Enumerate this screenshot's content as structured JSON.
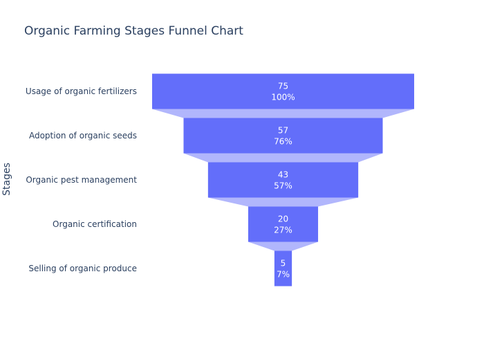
{
  "chart_data": {
    "type": "funnel",
    "title": "Organic Farming Stages Funnel Chart",
    "ylabel": "Stages",
    "xlabel": "",
    "categories": [
      "Usage of organic fertilizers",
      "Adoption of organic seeds",
      "Organic pest management",
      "Organic certification",
      "Selling of organic produce"
    ],
    "values": [
      75,
      57,
      43,
      20,
      5
    ],
    "percent_labels": [
      "100%",
      "76%",
      "57%",
      "27%",
      "7%"
    ],
    "colors": {
      "bar": "#636efa",
      "connector": "#b1b6fc"
    }
  }
}
